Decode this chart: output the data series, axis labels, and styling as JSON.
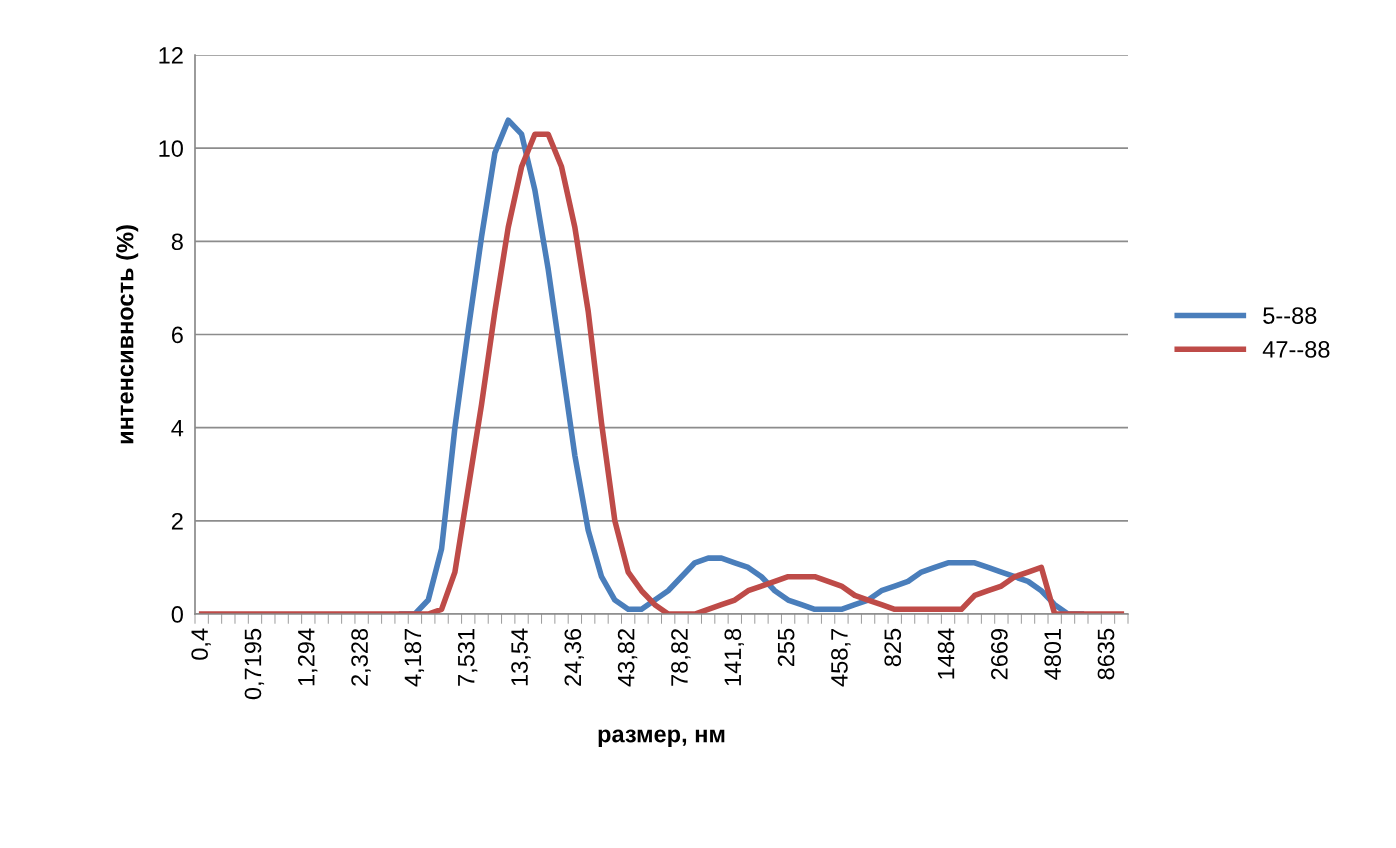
{
  "chart_data": {
    "type": "line",
    "xlabel": "размер, нм",
    "ylabel": "интенсивность (%)",
    "categories": [
      "0,4",
      null,
      null,
      null,
      "0,7195",
      null,
      null,
      null,
      "1,294",
      null,
      null,
      null,
      "2,328",
      null,
      null,
      null,
      "4,187",
      null,
      null,
      null,
      "7,531",
      null,
      null,
      null,
      "13,54",
      null,
      null,
      null,
      "24,36",
      null,
      null,
      null,
      "43,82",
      null,
      null,
      null,
      "78,82",
      null,
      null,
      null,
      "141,8",
      null,
      null,
      null,
      "255",
      null,
      null,
      null,
      "458,7",
      null,
      null,
      null,
      "825",
      null,
      null,
      null,
      "1484",
      null,
      null,
      null,
      "2669",
      null,
      null,
      null,
      "4801",
      null,
      null,
      null,
      "8635",
      null
    ],
    "series": [
      {
        "name": "5--88",
        "color": "#4a7ebb",
        "values": [
          null,
          null,
          null,
          null,
          null,
          null,
          null,
          null,
          null,
          null,
          null,
          null,
          null,
          null,
          null,
          0,
          0,
          0.3,
          1.4,
          4.0,
          6.1,
          8.1,
          9.9,
          10.6,
          10.3,
          9.1,
          7.4,
          5.4,
          3.4,
          1.8,
          0.8,
          0.3,
          0.1,
          0.1,
          0.3,
          0.5,
          0.8,
          1.1,
          1.2,
          1.2,
          1.1,
          1.0,
          0.8,
          0.5,
          0.3,
          0.2,
          0.1,
          0.1,
          0.1,
          0.2,
          0.3,
          0.5,
          0.6,
          0.7,
          0.9,
          1.0,
          1.1,
          1.1,
          1.1,
          1.0,
          0.9,
          0.8,
          0.7,
          0.5,
          0.2,
          0,
          0,
          null,
          null,
          null
        ]
      },
      {
        "name": "47--88",
        "color": "#be4b48",
        "values": [
          0,
          0,
          0,
          0,
          0,
          0,
          0,
          0,
          0,
          0,
          0,
          0,
          0,
          0,
          0,
          0,
          0,
          0,
          0.1,
          0.9,
          2.7,
          4.5,
          6.5,
          8.3,
          9.6,
          10.3,
          10.3,
          9.6,
          8.3,
          6.5,
          4.1,
          2.0,
          0.9,
          0.5,
          0.2,
          0,
          0,
          0,
          0.1,
          0.2,
          0.3,
          0.5,
          0.6,
          0.7,
          0.8,
          0.8,
          0.8,
          0.7,
          0.6,
          0.4,
          0.3,
          0.2,
          0.1,
          0.1,
          0.1,
          0.1,
          0.1,
          0.1,
          0.4,
          0.5,
          0.6,
          0.8,
          0.9,
          1.0,
          0,
          0,
          0,
          0,
          0,
          0
        ]
      }
    ],
    "ylim": [
      0,
      12
    ],
    "yticks": [
      0,
      2,
      4,
      6,
      8,
      10,
      12
    ],
    "grid": "y",
    "legend": "right",
    "marker": "none",
    "line_style": "solid"
  }
}
